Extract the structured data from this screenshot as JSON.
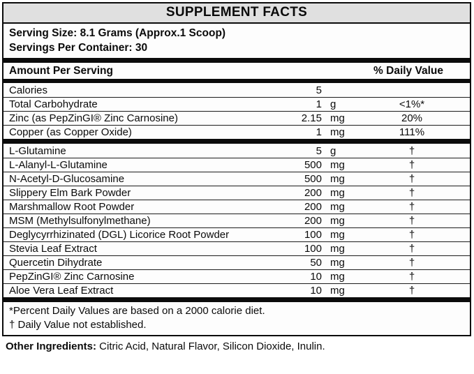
{
  "colors": {
    "header_bg": "#e0e0e0",
    "border": "#0b0b0b",
    "background": "#ffffff",
    "text": "#0b0b0b"
  },
  "label": {
    "title": "SUPPLEMENT FACTS",
    "serving_size": "Serving Size: 8.1 Grams (Approx.1 Scoop)",
    "servings_per_container": "Servings Per Container: 30",
    "columns": {
      "amount_header": "Amount Per Serving",
      "daily_value_header": "% Daily Value"
    },
    "sections": [
      {
        "rows": [
          {
            "name": "Calories",
            "amount": "5",
            "unit": "",
            "dv": ""
          },
          {
            "name": "Total Carbohydrate",
            "amount": "1",
            "unit": "g",
            "dv": "<1%*"
          },
          {
            "name": "Zinc (as PepZinGI® Zinc Carnosine)",
            "amount": "2.15",
            "unit": "mg",
            "dv": "20%"
          },
          {
            "name": "Copper (as Copper Oxide)",
            "amount": "1",
            "unit": "mg",
            "dv": "111%"
          }
        ]
      },
      {
        "rows": [
          {
            "name": "L-Glutamine",
            "amount": "5",
            "unit": "g",
            "dv": "†"
          },
          {
            "name": "L-Alanyl-L-Glutamine",
            "amount": "500",
            "unit": "mg",
            "dv": "†"
          },
          {
            "name": "N-Acetyl-D-Glucosamine",
            "amount": "500",
            "unit": "mg",
            "dv": "†"
          },
          {
            "name": "Slippery Elm Bark Powder",
            "amount": "200",
            "unit": "mg",
            "dv": "†"
          },
          {
            "name": "Marshmallow Root Powder",
            "amount": "200",
            "unit": "mg",
            "dv": "†"
          },
          {
            "name": "MSM (Methylsulfonylmethane)",
            "amount": "200",
            "unit": "mg",
            "dv": "†"
          },
          {
            "name": "Deglycyrrhizinated (DGL) Licorice Root Powder",
            "amount": "100",
            "unit": "mg",
            "dv": "†"
          },
          {
            "name": "Stevia Leaf Extract",
            "amount": "100",
            "unit": "mg",
            "dv": "†"
          },
          {
            "name": "Quercetin Dihydrate",
            "amount": "50",
            "unit": "mg",
            "dv": "†"
          },
          {
            "name": "PepZinGI® Zinc Carnosine",
            "amount": "10",
            "unit": "mg",
            "dv": "†"
          },
          {
            "name": "Aloe Vera Leaf Extract",
            "amount": "10",
            "unit": "mg",
            "dv": "†"
          }
        ]
      }
    ],
    "footnotes": [
      "*Percent Daily Values are based on a 2000 calorie diet.",
      "† Daily Value not established."
    ],
    "other_ingredients": {
      "label": "Other Ingredients:",
      "text": " Citric Acid, Natural Flavor, Silicon Dioxide, Inulin."
    }
  }
}
